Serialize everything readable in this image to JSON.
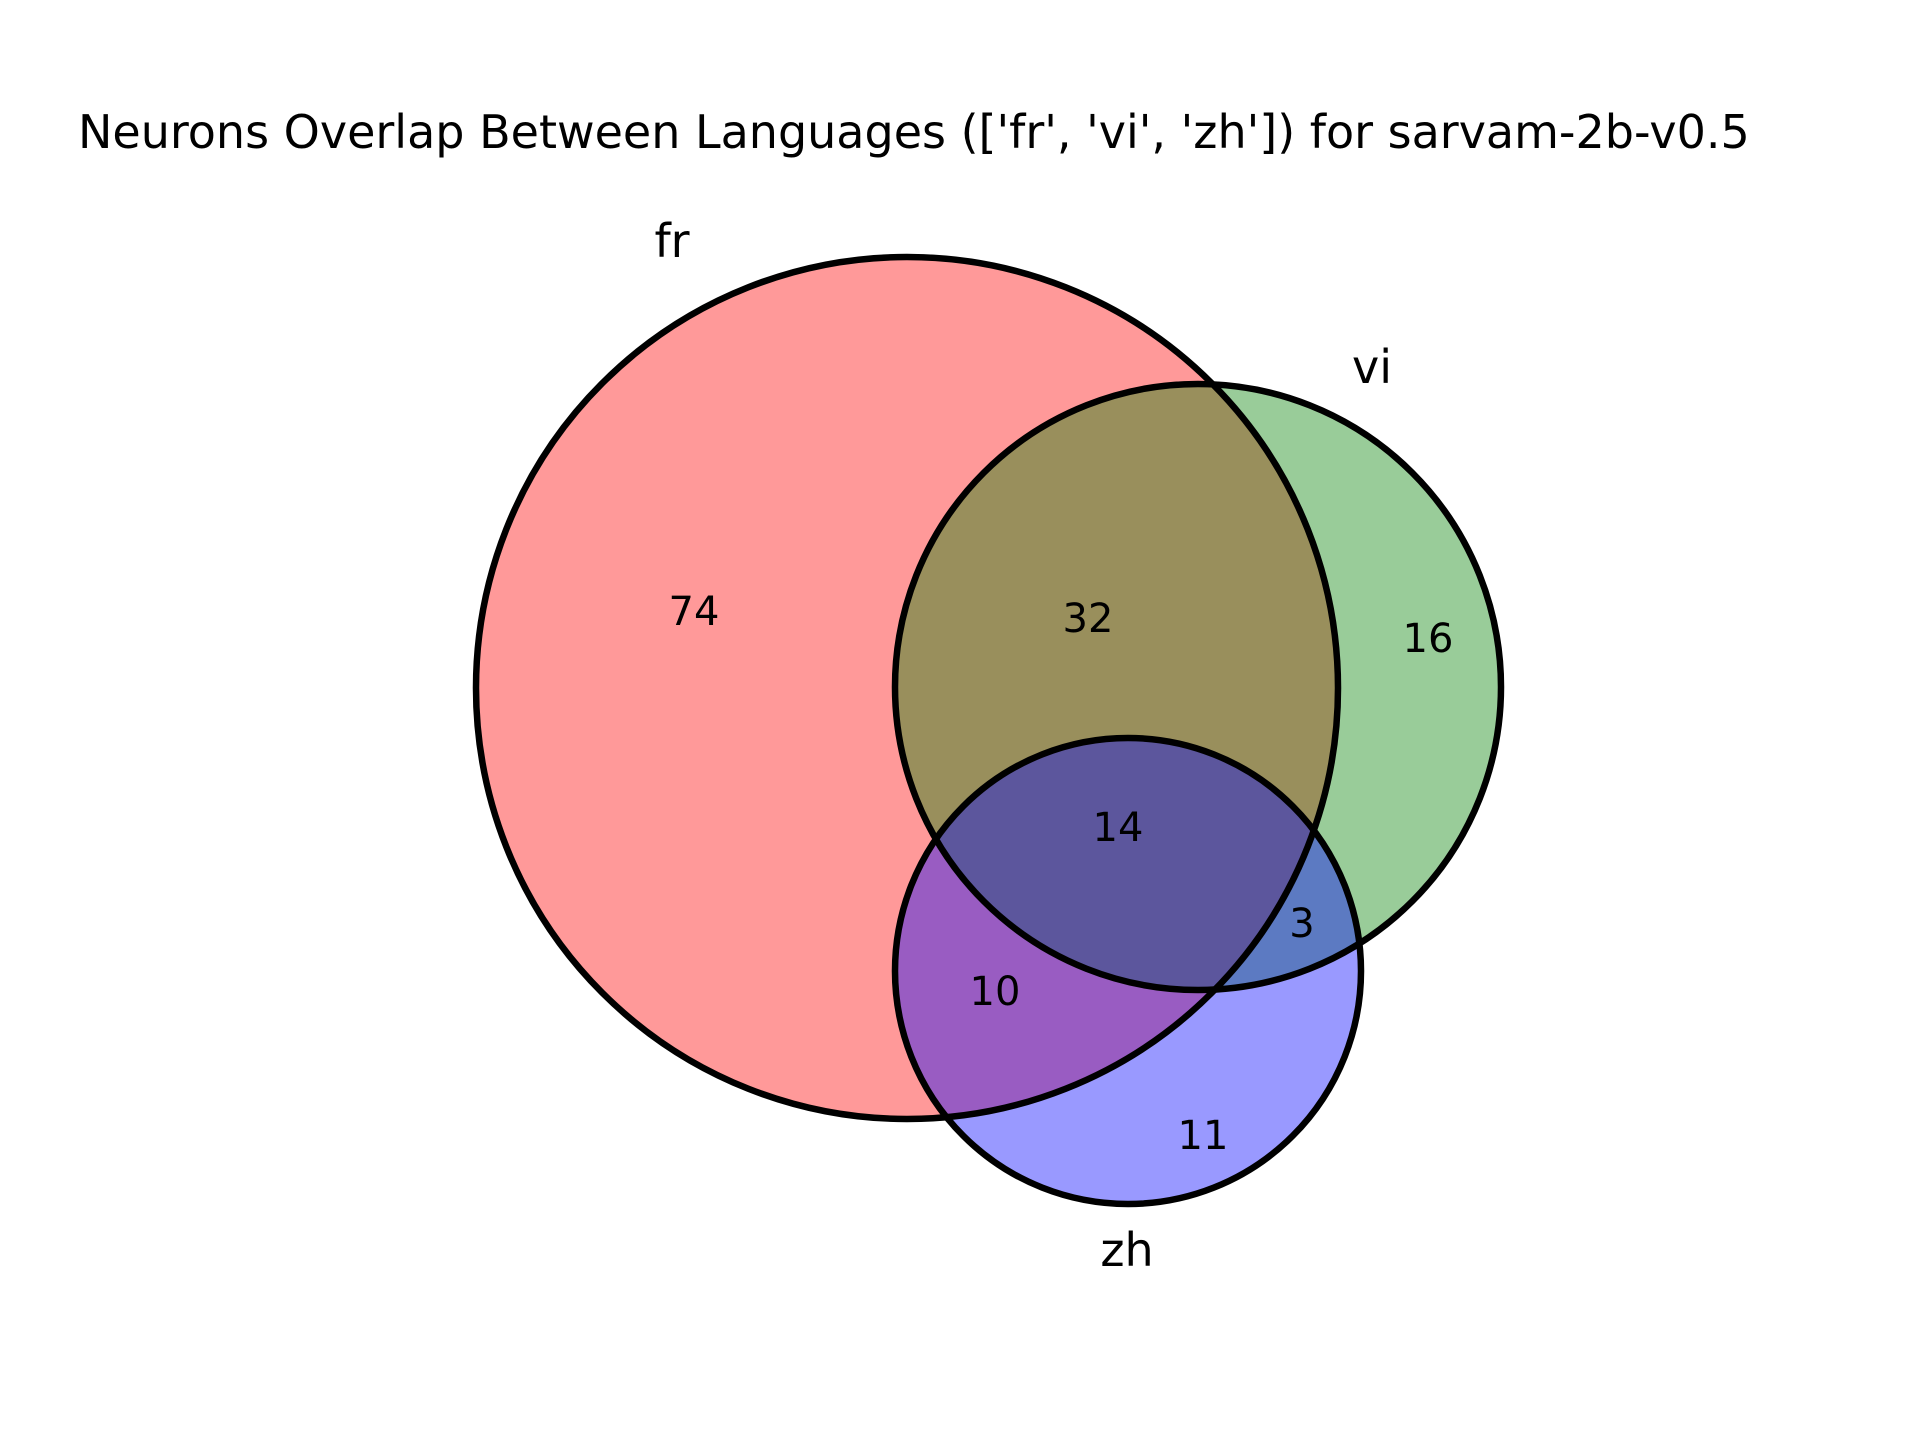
{
  "chart_data": {
    "type": "venn",
    "title": "Neurons Overlap Between Languages (['fr', 'vi', 'zh']) for sarvam-2b-v0.5",
    "sets": [
      {
        "name": "fr",
        "color": "#ff0000"
      },
      {
        "name": "vi",
        "color": "#008000"
      },
      {
        "name": "zh",
        "color": "#0000ff"
      }
    ],
    "regions": [
      {
        "sets": [
          "fr"
        ],
        "value": 74
      },
      {
        "sets": [
          "vi"
        ],
        "value": 16
      },
      {
        "sets": [
          "zh"
        ],
        "value": 11
      },
      {
        "sets": [
          "fr",
          "vi"
        ],
        "value": 32
      },
      {
        "sets": [
          "fr",
          "zh"
        ],
        "value": 10
      },
      {
        "sets": [
          "vi",
          "zh"
        ],
        "value": 3
      },
      {
        "sets": [
          "fr",
          "vi",
          "zh"
        ],
        "value": 14
      }
    ],
    "fill_opacity": 0.4
  }
}
